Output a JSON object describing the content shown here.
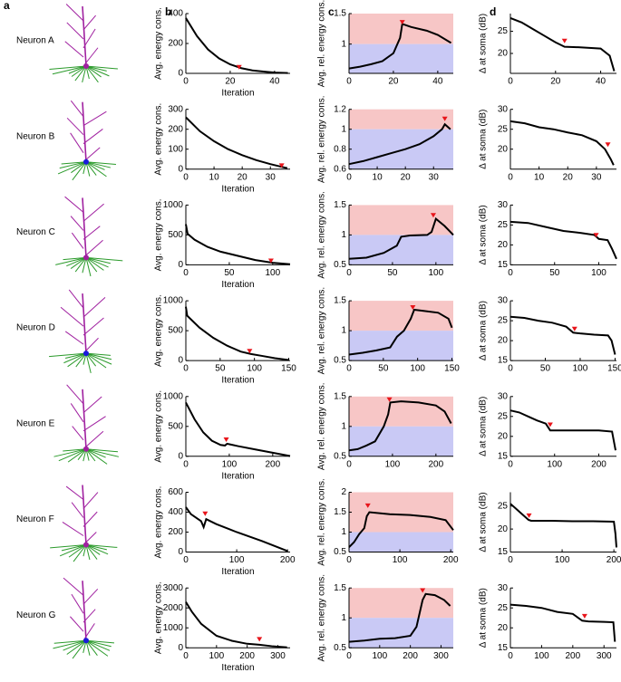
{
  "panel_labels": [
    "a",
    "b",
    "c",
    "d"
  ],
  "neurons": [
    "Neuron A",
    "Neuron B",
    "Neuron C",
    "Neuron D",
    "Neuron E",
    "Neuron F",
    "Neuron G"
  ],
  "chart_data": [
    {
      "type": "line",
      "ylabel": "Avg. energy cons.",
      "xlabel": "Iteration",
      "color": "#000000",
      "xlim": [
        0,
        47
      ],
      "xticks": [
        0,
        20,
        40
      ],
      "ylim": [
        0,
        400
      ],
      "yticks": [
        0,
        200,
        400
      ],
      "x": [
        0,
        5,
        10,
        15,
        20,
        25,
        30,
        35,
        40,
        46
      ],
      "values": [
        370,
        250,
        160,
        100,
        60,
        35,
        20,
        12,
        5,
        2
      ],
      "marker": {
        "x": 24,
        "y": 38,
        "color": "#e8151b"
      }
    },
    {
      "type": "line",
      "ylabel": "Avg. rel. energy cons.",
      "color": "#000000",
      "xlim": [
        0,
        47
      ],
      "xticks": [
        0,
        20,
        40
      ],
      "ylim": [
        0.52,
        1.5
      ],
      "yticks": [
        1,
        1.5
      ],
      "shading": {
        "threshold": 1,
        "below": "#c9c9f5",
        "above": "#f7c6c6"
      },
      "x": [
        0,
        5,
        10,
        15,
        20,
        23,
        24,
        28,
        35,
        40,
        46
      ],
      "values": [
        0.6,
        0.63,
        0.67,
        0.72,
        0.85,
        1.1,
        1.33,
        1.28,
        1.22,
        1.15,
        1.02
      ],
      "marker": {
        "x": 24,
        "y": 1.35,
        "color": "#e8151b"
      }
    },
    {
      "type": "line",
      "ylabel": "Δ at soma (dB)",
      "color": "#000000",
      "xlim": [
        0,
        47
      ],
      "xticks": [
        0,
        20,
        40
      ],
      "ylim": [
        15.5,
        29
      ],
      "yticks": [
        20,
        25
      ],
      "x": [
        0,
        5,
        10,
        15,
        20,
        24,
        30,
        40,
        44,
        46
      ],
      "values": [
        28,
        27,
        25.5,
        24,
        22.5,
        21.5,
        21.4,
        21.1,
        19.5,
        16
      ],
      "marker": {
        "x": 24,
        "y": 22.7,
        "color": "#e8151b"
      }
    },
    {
      "type": "line",
      "ylabel": "Avg. energy cons.",
      "xlabel": "Iteration",
      "color": "#000000",
      "xlim": [
        0,
        37
      ],
      "xticks": [
        0,
        10,
        20,
        30
      ],
      "ylim": [
        0,
        300
      ],
      "yticks": [
        0,
        100,
        200,
        300
      ],
      "x": [
        0,
        5,
        10,
        15,
        20,
        25,
        30,
        35,
        36
      ],
      "values": [
        260,
        190,
        140,
        100,
        70,
        45,
        25,
        8,
        5
      ],
      "marker": {
        "x": 34,
        "y": 15,
        "color": "#e8151b"
      }
    },
    {
      "type": "line",
      "ylabel": "Avg. rel. energy cons.",
      "color": "#000000",
      "xlim": [
        0,
        37
      ],
      "xticks": [
        0,
        10,
        20,
        30
      ],
      "ylim": [
        0.6,
        1.2
      ],
      "yticks": [
        0.6,
        0.8,
        1,
        1.2
      ],
      "shading": {
        "threshold": 1,
        "below": "#c9c9f5",
        "above": "#f7c6c6"
      },
      "x": [
        0,
        5,
        10,
        15,
        20,
        25,
        30,
        33,
        34,
        36
      ],
      "values": [
        0.65,
        0.68,
        0.72,
        0.76,
        0.8,
        0.85,
        0.93,
        1.0,
        1.05,
        1.0
      ],
      "marker": {
        "x": 34,
        "y": 1.1,
        "color": "#e8151b"
      }
    },
    {
      "type": "line",
      "ylabel": "Δ at soma (dB)",
      "color": "#000000",
      "xlim": [
        0,
        37
      ],
      "xticks": [
        0,
        10,
        20,
        30
      ],
      "ylim": [
        15,
        30
      ],
      "yticks": [
        20,
        25,
        30
      ],
      "x": [
        0,
        5,
        10,
        15,
        20,
        25,
        30,
        33,
        35,
        36
      ],
      "values": [
        27,
        26.5,
        25.5,
        25,
        24.2,
        23.5,
        22,
        20,
        17.5,
        16
      ],
      "marker": {
        "x": 34,
        "y": 21,
        "color": "#e8151b"
      }
    },
    {
      "type": "line",
      "ylabel": "Avg. energy cons.",
      "xlabel": "Iteration",
      "color": "#000000",
      "xlim": [
        0,
        120
      ],
      "xticks": [
        0,
        50,
        100
      ],
      "ylim": [
        0,
        1000
      ],
      "yticks": [
        0,
        500,
        1000
      ],
      "x": [
        0,
        2,
        10,
        25,
        40,
        60,
        80,
        100,
        120
      ],
      "values": [
        680,
        520,
        420,
        300,
        220,
        150,
        80,
        35,
        10
      ],
      "marker": {
        "x": 98,
        "y": 60,
        "color": "#e8151b"
      }
    },
    {
      "type": "line",
      "ylabel": "Avg. rel. energy cons.",
      "color": "#000000",
      "xlim": [
        0,
        120
      ],
      "xticks": [
        0,
        50,
        100
      ],
      "ylim": [
        0.5,
        1.5
      ],
      "yticks": [
        0.5,
        1,
        1.5
      ],
      "shading": {
        "threshold": 1,
        "below": "#c9c9f5",
        "above": "#f7c6c6"
      },
      "x": [
        0,
        20,
        40,
        55,
        60,
        70,
        90,
        95,
        100,
        110,
        120
      ],
      "values": [
        0.6,
        0.62,
        0.7,
        0.82,
        0.97,
        0.99,
        1.0,
        1.05,
        1.27,
        1.15,
        1.0
      ],
      "marker": {
        "x": 97,
        "y": 1.32,
        "color": "#e8151b"
      }
    },
    {
      "type": "line",
      "ylabel": "Δ at soma (dB)",
      "color": "#000000",
      "xlim": [
        0,
        120
      ],
      "xticks": [
        0,
        50,
        100
      ],
      "ylim": [
        15,
        30
      ],
      "yticks": [
        15,
        20,
        25,
        30
      ],
      "x": [
        0,
        20,
        40,
        60,
        80,
        95,
        100,
        110,
        115,
        120
      ],
      "values": [
        25.8,
        25.5,
        24.5,
        23.5,
        23,
        22.5,
        21.5,
        21.2,
        19,
        16.5
      ],
      "marker": {
        "x": 97,
        "y": 22.3,
        "color": "#e8151b"
      }
    },
    {
      "type": "line",
      "ylabel": "Avg. energy cons.",
      "xlabel": "Iteration",
      "color": "#000000",
      "xlim": [
        0,
        152
      ],
      "xticks": [
        0,
        50,
        100,
        150
      ],
      "ylim": [
        0,
        1000
      ],
      "yticks": [
        0,
        500,
        1000
      ],
      "x": [
        0,
        2,
        20,
        40,
        60,
        80,
        95,
        110,
        130,
        150
      ],
      "values": [
        900,
        750,
        550,
        380,
        250,
        150,
        110,
        80,
        40,
        10
      ],
      "marker": {
        "x": 93,
        "y": 150,
        "color": "#e8151b"
      }
    },
    {
      "type": "line",
      "ylabel": "Avg. rel. energy cons.",
      "color": "#000000",
      "xlim": [
        0,
        152
      ],
      "xticks": [
        0,
        50,
        100,
        150
      ],
      "ylim": [
        0.5,
        1.5
      ],
      "yticks": [
        0.5,
        1,
        1.5
      ],
      "shading": {
        "threshold": 1,
        "below": "#c9c9f5",
        "above": "#f7c6c6"
      },
      "x": [
        0,
        20,
        40,
        60,
        70,
        80,
        90,
        95,
        110,
        130,
        145,
        150
      ],
      "values": [
        0.6,
        0.63,
        0.67,
        0.72,
        0.9,
        1.0,
        1.2,
        1.35,
        1.33,
        1.3,
        1.2,
        1.05
      ],
      "marker": {
        "x": 93,
        "y": 1.38,
        "color": "#e8151b"
      }
    },
    {
      "type": "line",
      "ylabel": "Δ at soma (dB)",
      "color": "#000000",
      "xlim": [
        0,
        152
      ],
      "xticks": [
        0,
        50,
        100,
        150
      ],
      "ylim": [
        15,
        30
      ],
      "yticks": [
        15,
        20,
        25,
        30
      ],
      "x": [
        0,
        20,
        40,
        60,
        80,
        90,
        100,
        120,
        140,
        145,
        150
      ],
      "values": [
        26,
        25.7,
        25,
        24.5,
        23.5,
        22,
        21.8,
        21.5,
        21.3,
        20,
        16.5
      ],
      "marker": {
        "x": 92,
        "y": 22.8,
        "color": "#e8151b"
      }
    },
    {
      "type": "line",
      "ylabel": "Avg. energy cons.",
      "xlabel": "Iteration",
      "color": "#000000",
      "xlim": [
        0,
        240
      ],
      "xticks": [
        0,
        100,
        200
      ],
      "ylim": [
        0,
        1000
      ],
      "yticks": [
        0,
        500,
        1000
      ],
      "x": [
        0,
        20,
        40,
        60,
        80,
        90,
        95,
        120,
        160,
        200,
        240
      ],
      "values": [
        900,
        620,
        400,
        260,
        190,
        180,
        210,
        170,
        115,
        60,
        5
      ],
      "marker": {
        "x": 93,
        "y": 270,
        "color": "#e8151b"
      }
    },
    {
      "type": "line",
      "ylabel": "Avg. rel. energy cons.",
      "color": "#000000",
      "xlim": [
        0,
        240
      ],
      "xticks": [
        0,
        100,
        200
      ],
      "ylim": [
        0.5,
        1.5
      ],
      "yticks": [
        0.5,
        1,
        1.5
      ],
      "shading": {
        "threshold": 1,
        "below": "#c9c9f5",
        "above": "#f7c6c6"
      },
      "x": [
        0,
        20,
        40,
        60,
        80,
        90,
        95,
        120,
        160,
        200,
        220,
        235
      ],
      "values": [
        0.6,
        0.62,
        0.68,
        0.75,
        1.0,
        1.2,
        1.4,
        1.42,
        1.4,
        1.35,
        1.25,
        1.05
      ],
      "marker": {
        "x": 93,
        "y": 1.44,
        "color": "#e8151b"
      }
    },
    {
      "type": "line",
      "ylabel": "Δ at soma (dB)",
      "color": "#000000",
      "xlim": [
        0,
        240
      ],
      "xticks": [
        0,
        100,
        200
      ],
      "ylim": [
        15,
        30
      ],
      "yticks": [
        15,
        20,
        25,
        30
      ],
      "x": [
        0,
        20,
        40,
        60,
        80,
        90,
        100,
        150,
        200,
        230,
        238
      ],
      "values": [
        26.5,
        26,
        25,
        24,
        23.2,
        21.5,
        21.5,
        21.5,
        21.5,
        21.2,
        16.5
      ],
      "marker": {
        "x": 90,
        "y": 22.8,
        "color": "#e8151b"
      }
    },
    {
      "type": "line",
      "ylabel": "Avg. energy cons.",
      "xlabel": "Iteration",
      "color": "#000000",
      "xlim": [
        0,
        205
      ],
      "xticks": [
        0,
        100,
        200
      ],
      "ylim": [
        0,
        600
      ],
      "yticks": [
        0,
        200,
        400,
        600
      ],
      "x": [
        0,
        10,
        30,
        35,
        40,
        60,
        100,
        150,
        200
      ],
      "values": [
        450,
        380,
        310,
        250,
        330,
        280,
        200,
        110,
        10
      ],
      "marker": {
        "x": 38,
        "y": 380,
        "color": "#e8151b"
      }
    },
    {
      "type": "line",
      "ylabel": "Avg. rel. energy cons.",
      "color": "#000000",
      "xlim": [
        0,
        205
      ],
      "xticks": [
        0,
        100,
        200
      ],
      "ylim": [
        0.5,
        2
      ],
      "yticks": [
        0.5,
        1,
        1.5,
        2
      ],
      "shading": {
        "threshold": 1,
        "below": "#c9c9f5",
        "above": "#f7c6c6"
      },
      "x": [
        0,
        10,
        20,
        30,
        35,
        40,
        80,
        120,
        160,
        190,
        205
      ],
      "values": [
        0.62,
        0.75,
        0.95,
        1.1,
        1.4,
        1.5,
        1.45,
        1.43,
        1.38,
        1.3,
        1.05
      ],
      "marker": {
        "x": 37,
        "y": 1.65,
        "color": "#e8151b"
      }
    },
    {
      "type": "line",
      "ylabel": "Δ at soma (dB)",
      "color": "#000000",
      "xlim": [
        0,
        205
      ],
      "xticks": [
        0,
        100,
        200
      ],
      "ylim": [
        15,
        28
      ],
      "yticks": [
        15,
        20,
        25
      ],
      "x": [
        0,
        10,
        20,
        35,
        40,
        80,
        120,
        160,
        200,
        203,
        205
      ],
      "values": [
        25.5,
        24.5,
        23.5,
        22,
        21.8,
        21.8,
        21.7,
        21.7,
        21.6,
        19,
        16
      ],
      "marker": {
        "x": 36,
        "y": 22.8,
        "color": "#e8151b"
      }
    },
    {
      "type": "line",
      "ylabel": "Avg. energy cons.",
      "xlabel": "Iteration",
      "color": "#000000",
      "xlim": [
        0,
        340
      ],
      "xticks": [
        0,
        100,
        200,
        300
      ],
      "ylim": [
        0,
        3000
      ],
      "yticks": [
        0,
        1000,
        2000,
        3000
      ],
      "x": [
        0,
        20,
        50,
        100,
        150,
        200,
        240,
        280,
        330
      ],
      "values": [
        2300,
        1800,
        1200,
        600,
        350,
        200,
        150,
        80,
        20
      ],
      "marker": {
        "x": 240,
        "y": 400,
        "color": "#e8151b"
      }
    },
    {
      "type": "line",
      "ylabel": "Avg. rel. energy cons.",
      "color": "#000000",
      "xlim": [
        0,
        340
      ],
      "xticks": [
        0,
        100,
        200,
        300
      ],
      "ylim": [
        0.5,
        1.5
      ],
      "yticks": [
        0.5,
        1,
        1.5
      ],
      "shading": {
        "threshold": 1,
        "below": "#c9c9f5",
        "above": "#f7c6c6"
      },
      "x": [
        0,
        50,
        100,
        150,
        200,
        220,
        240,
        250,
        280,
        310,
        330
      ],
      "values": [
        0.6,
        0.62,
        0.65,
        0.66,
        0.7,
        0.85,
        1.3,
        1.4,
        1.38,
        1.3,
        1.2
      ],
      "marker": {
        "x": 240,
        "y": 1.45,
        "color": "#e8151b"
      }
    },
    {
      "type": "line",
      "ylabel": "Δ at soma (dB)",
      "color": "#000000",
      "xlim": [
        0,
        340
      ],
      "xticks": [
        0,
        100,
        200,
        300
      ],
      "ylim": [
        15,
        30
      ],
      "yticks": [
        15,
        20,
        25,
        30
      ],
      "x": [
        0,
        50,
        100,
        150,
        200,
        230,
        250,
        300,
        330,
        335
      ],
      "values": [
        25.8,
        25.5,
        25,
        24,
        23.5,
        21.8,
        21.6,
        21.5,
        21.4,
        16.5
      ],
      "marker": {
        "x": 238,
        "y": 22.8,
        "color": "#e8151b"
      }
    }
  ]
}
